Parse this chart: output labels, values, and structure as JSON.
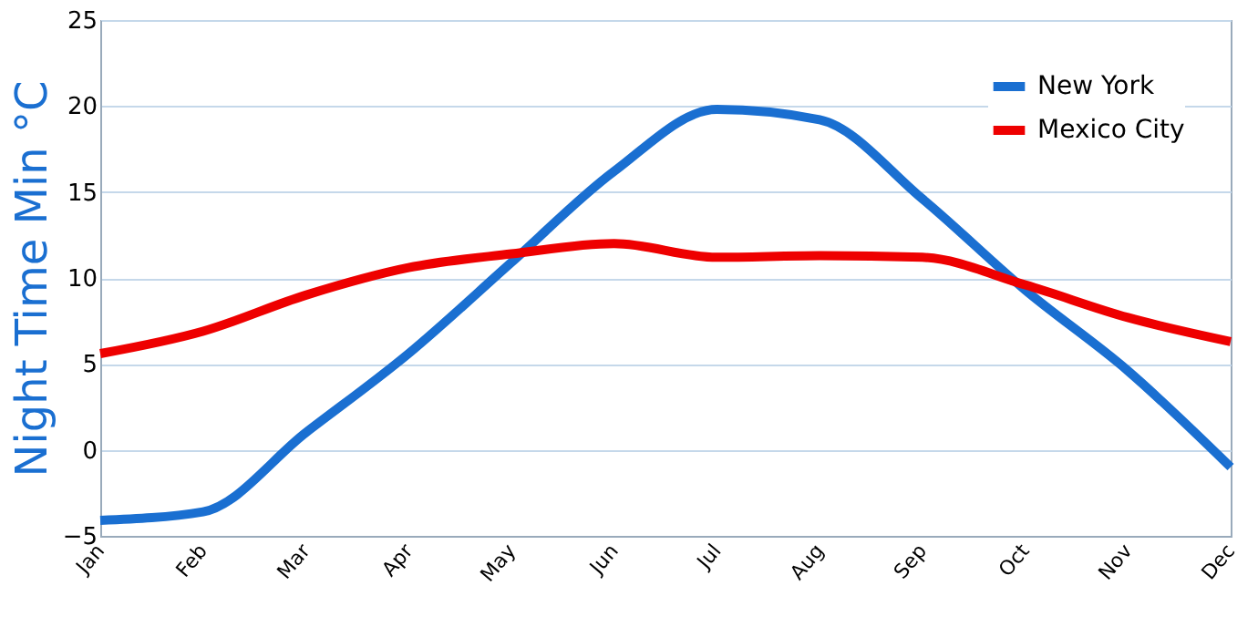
{
  "chart_data": {
    "type": "line",
    "ylabel": "Night Time Min °C",
    "categories": [
      "Jan",
      "Feb",
      "Mar",
      "Apr",
      "May",
      "Jun",
      "Jul",
      "Aug",
      "Sep",
      "Oct",
      "Nov",
      "Dec"
    ],
    "series": [
      {
        "name": "New York",
        "color": "#1a6fd1",
        "values": [
          -4.1,
          -3.6,
          1.0,
          5.6,
          10.9,
          16.2,
          19.8,
          19.2,
          14.6,
          9.3,
          4.6,
          -1.0
        ]
      },
      {
        "name": "Mexico City",
        "color": "#ee0000",
        "values": [
          5.6,
          6.9,
          9.0,
          10.6,
          11.4,
          12.0,
          11.2,
          11.3,
          11.2,
          9.6,
          7.7,
          6.3
        ]
      }
    ],
    "ylim": [
      -5,
      25
    ],
    "yticks": [
      -5,
      0,
      5,
      10,
      15,
      20,
      25
    ],
    "grid": "y",
    "legend": "top right",
    "marker": "none",
    "line_style": "solid"
  }
}
